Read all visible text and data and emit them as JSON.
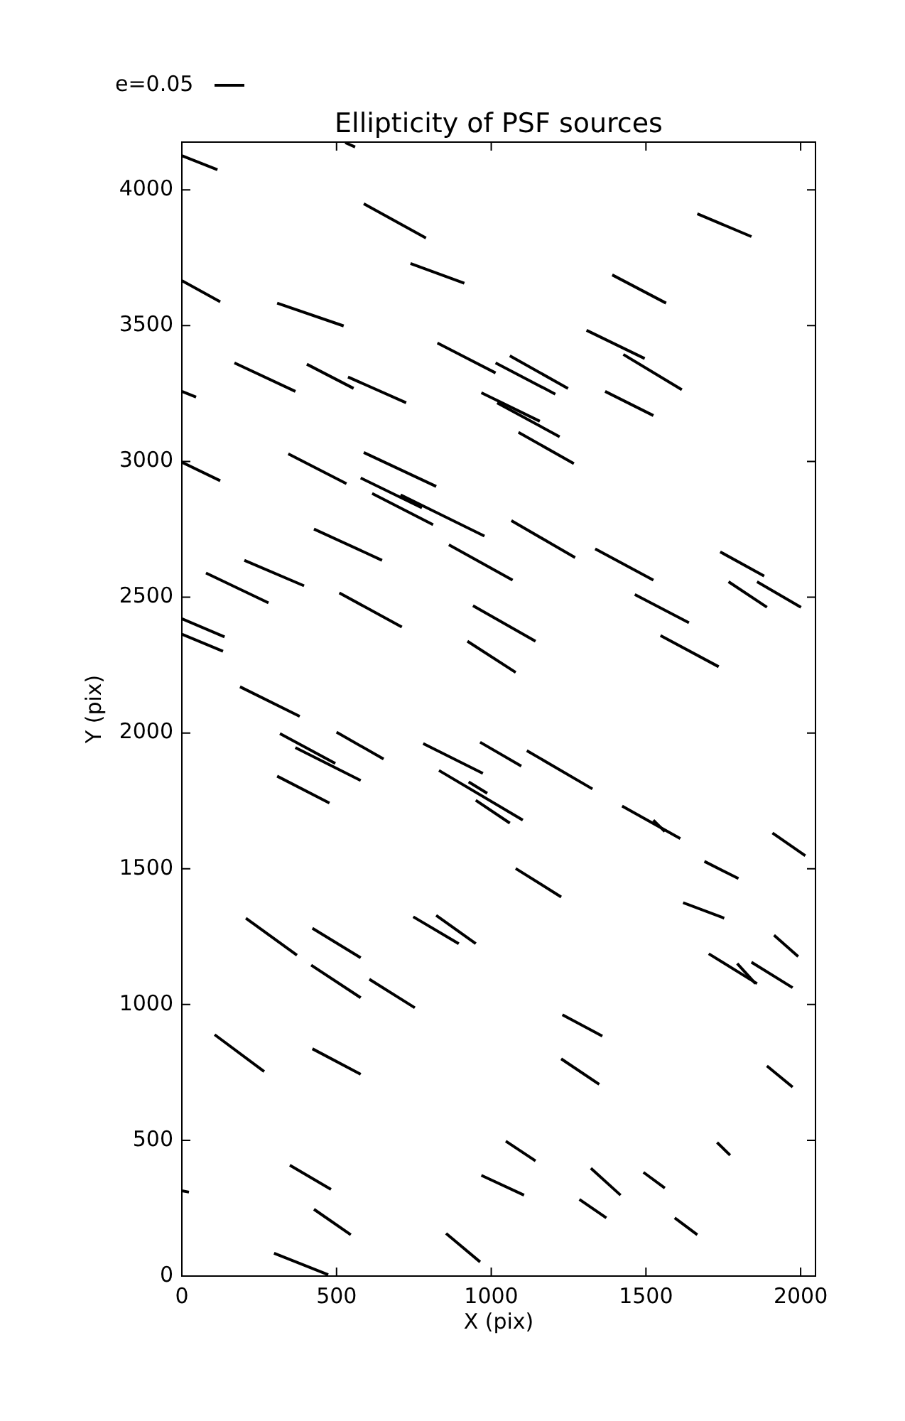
{
  "chart_data": {
    "type": "line",
    "title": "Ellipticity of PSF sources",
    "xlabel": "X (pix)",
    "ylabel": "Y (pix)",
    "annotations": [
      "e=0.05"
    ],
    "color": "#000000",
    "marker": "none",
    "grid": false,
    "legend": false,
    "xlim": [
      0,
      2048
    ],
    "ylim": [
      0,
      4176
    ],
    "xticks": [
      0,
      500,
      1000,
      1500,
      2000
    ],
    "yticks": [
      0,
      500,
      1000,
      1500,
      2000,
      2500,
      3000,
      3500,
      4000
    ],
    "series": [
      {
        "x": [
          0,
          115
        ],
        "values": [
          4126,
          4074
        ]
      },
      {
        "x": [
          528,
          560
        ],
        "values": [
          4174,
          4158
        ]
      },
      {
        "x": [
          588,
          789
        ],
        "values": [
          3949,
          3823
        ]
      },
      {
        "x": [
          1666,
          1841
        ],
        "values": [
          3912,
          3828
        ]
      },
      {
        "x": [
          739,
          913
        ],
        "values": [
          3729,
          3656
        ]
      },
      {
        "x": [
          0,
          124
        ],
        "values": [
          3666,
          3588
        ]
      },
      {
        "x": [
          308,
          523
        ],
        "values": [
          3583,
          3499
        ]
      },
      {
        "x": [
          1391,
          1565
        ],
        "values": [
          3687,
          3583
        ]
      },
      {
        "x": [
          170,
          367
        ],
        "values": [
          3363,
          3258
        ]
      },
      {
        "x": [
          404,
          555
        ],
        "values": [
          3358,
          3269
        ]
      },
      {
        "x": [
          537,
          725
        ],
        "values": [
          3311,
          3216
        ]
      },
      {
        "x": [
          0,
          46
        ],
        "values": [
          3258,
          3237
        ]
      },
      {
        "x": [
          826,
          1014
        ],
        "values": [
          3436,
          3326
        ]
      },
      {
        "x": [
          1014,
          1207
        ],
        "values": [
          3363,
          3248
        ]
      },
      {
        "x": [
          1060,
          1248
        ],
        "values": [
          3389,
          3269
        ]
      },
      {
        "x": [
          1308,
          1496
        ],
        "values": [
          3483,
          3379
        ]
      },
      {
        "x": [
          1427,
          1616
        ],
        "values": [
          3394,
          3264
        ]
      },
      {
        "x": [
          1368,
          1524
        ],
        "values": [
          3258,
          3169
        ]
      },
      {
        "x": [
          968,
          1157
        ],
        "values": [
          3253,
          3148
        ]
      },
      {
        "x": [
          1019,
          1221
        ],
        "values": [
          3216,
          3091
        ]
      },
      {
        "x": [
          0,
          124
        ],
        "values": [
          2997,
          2929
        ]
      },
      {
        "x": [
          344,
          532
        ],
        "values": [
          3028,
          2918
        ]
      },
      {
        "x": [
          588,
          822
        ],
        "values": [
          3033,
          2908
        ]
      },
      {
        "x": [
          1088,
          1267
        ],
        "values": [
          3107,
          2992
        ]
      },
      {
        "x": [
          578,
          776
        ],
        "values": [
          2939,
          2829
        ]
      },
      {
        "x": [
          615,
          812
        ],
        "values": [
          2882,
          2767
        ]
      },
      {
        "x": [
          707,
          978
        ],
        "values": [
          2877,
          2725
        ]
      },
      {
        "x": [
          427,
          647
        ],
        "values": [
          2751,
          2636
        ]
      },
      {
        "x": [
          1065,
          1271
        ],
        "values": [
          2782,
          2646
        ]
      },
      {
        "x": [
          863,
          1069
        ],
        "values": [
          2693,
          2563
        ]
      },
      {
        "x": [
          1336,
          1524
        ],
        "values": [
          2678,
          2563
        ]
      },
      {
        "x": [
          1740,
          1882
        ],
        "values": [
          2667,
          2578
        ]
      },
      {
        "x": [
          1767,
          1891
        ],
        "values": [
          2557,
          2463
        ]
      },
      {
        "x": [
          1859,
          2001
        ],
        "values": [
          2557,
          2463
        ]
      },
      {
        "x": [
          1464,
          1639
        ],
        "values": [
          2510,
          2406
        ]
      },
      {
        "x": [
          1547,
          1735
        ],
        "values": [
          2359,
          2244
        ]
      },
      {
        "x": [
          941,
          1143
        ],
        "values": [
          2469,
          2338
        ]
      },
      {
        "x": [
          923,
          1079
        ],
        "values": [
          2338,
          2223
        ]
      },
      {
        "x": [
          509,
          711
        ],
        "values": [
          2516,
          2390
        ]
      },
      {
        "x": [
          78,
          280
        ],
        "values": [
          2589,
          2479
        ]
      },
      {
        "x": [
          202,
          395
        ],
        "values": [
          2636,
          2542
        ]
      },
      {
        "x": [
          0,
          138
        ],
        "values": [
          2421,
          2354
        ]
      },
      {
        "x": [
          0,
          133
        ],
        "values": [
          2364,
          2301
        ]
      },
      {
        "x": [
          188,
          381
        ],
        "values": [
          2170,
          2061
        ]
      },
      {
        "x": [
          317,
          496
        ],
        "values": [
          1998,
          1888
        ]
      },
      {
        "x": [
          367,
          578
        ],
        "values": [
          1946,
          1825
        ]
      },
      {
        "x": [
          500,
          652
        ],
        "values": [
          2003,
          1904
        ]
      },
      {
        "x": [
          308,
          477
        ],
        "values": [
          1841,
          1742
        ]
      },
      {
        "x": [
          780,
          973
        ],
        "values": [
          1961,
          1851
        ]
      },
      {
        "x": [
          964,
          1097
        ],
        "values": [
          1966,
          1878
        ]
      },
      {
        "x": [
          1115,
          1327
        ],
        "values": [
          1935,
          1794
        ]
      },
      {
        "x": [
          831,
          1102
        ],
        "values": [
          1862,
          1679
        ]
      },
      {
        "x": [
          927,
          987
        ],
        "values": [
          1820,
          1778
        ]
      },
      {
        "x": [
          950,
          1060
        ],
        "values": [
          1752,
          1668
        ]
      },
      {
        "x": [
          1423,
          1611
        ],
        "values": [
          1731,
          1611
        ]
      },
      {
        "x": [
          1524,
          1561
        ],
        "values": [
          1679,
          1637
        ]
      },
      {
        "x": [
          1909,
          2015
        ],
        "values": [
          1632,
          1548
        ]
      },
      {
        "x": [
          1689,
          1799
        ],
        "values": [
          1527,
          1464
        ]
      },
      {
        "x": [
          1079,
          1226
        ],
        "values": [
          1501,
          1396
        ]
      },
      {
        "x": [
          1620,
          1753
        ],
        "values": [
          1375,
          1318
        ]
      },
      {
        "x": [
          207,
          372
        ],
        "values": [
          1318,
          1182
        ]
      },
      {
        "x": [
          422,
          578
        ],
        "values": [
          1281,
          1172
        ]
      },
      {
        "x": [
          748,
          895
        ],
        "values": [
          1323,
          1224
        ]
      },
      {
        "x": [
          822,
          950
        ],
        "values": [
          1328,
          1224
        ]
      },
      {
        "x": [
          1914,
          1992
        ],
        "values": [
          1255,
          1177
        ]
      },
      {
        "x": [
          1703,
          1859
        ],
        "values": [
          1187,
          1077
        ]
      },
      {
        "x": [
          1795,
          1854
        ],
        "values": [
          1151,
          1077
        ]
      },
      {
        "x": [
          1841,
          1974
        ],
        "values": [
          1156,
          1062
        ]
      },
      {
        "x": [
          418,
          578
        ],
        "values": [
          1145,
          1025
        ]
      },
      {
        "x": [
          606,
          753
        ],
        "values": [
          1093,
          988
        ]
      },
      {
        "x": [
          106,
          266
        ],
        "values": [
          889,
          753
        ]
      },
      {
        "x": [
          422,
          578
        ],
        "values": [
          837,
          743
        ]
      },
      {
        "x": [
          1230,
          1359
        ],
        "values": [
          962,
          884
        ]
      },
      {
        "x": [
          1226,
          1349
        ],
        "values": [
          800,
          706
        ]
      },
      {
        "x": [
          1891,
          1974
        ],
        "values": [
          774,
          696
        ]
      },
      {
        "x": [
          1047,
          1143
        ],
        "values": [
          497,
          424
        ]
      },
      {
        "x": [
          1730,
          1772
        ],
        "values": [
          492,
          445
        ]
      },
      {
        "x": [
          349,
          482
        ],
        "values": [
          408,
          319
        ]
      },
      {
        "x": [
          968,
          1106
        ],
        "values": [
          371,
          298
        ]
      },
      {
        "x": [
          1322,
          1418
        ],
        "values": [
          397,
          298
        ]
      },
      {
        "x": [
          1492,
          1561
        ],
        "values": [
          382,
          324
        ]
      },
      {
        "x": [
          427,
          546
        ],
        "values": [
          246,
          152
        ]
      },
      {
        "x": [
          1285,
          1372
        ],
        "values": [
          282,
          214
        ]
      },
      {
        "x": [
          1593,
          1666
        ],
        "values": [
          214,
          152
        ]
      },
      {
        "x": [
          854,
          964
        ],
        "values": [
          157,
          52
        ]
      },
      {
        "x": [
          298,
          473
        ],
        "values": [
          84,
          5
        ]
      },
      {
        "x": [
          0,
          23
        ],
        "values": [
          314,
          309
        ]
      }
    ]
  }
}
